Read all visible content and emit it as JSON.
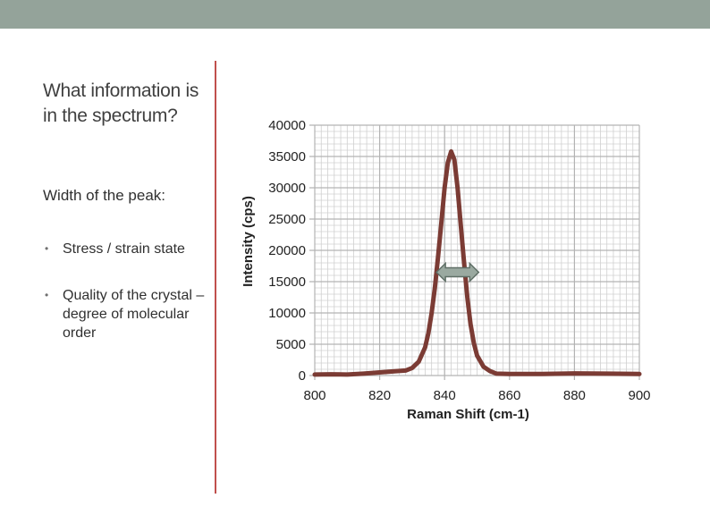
{
  "slide": {
    "title": "What information is in the spectrum?",
    "subheading": "Width of the peak:",
    "bullets": [
      "Stress / strain state",
      "Quality of the crystal – degree of molecular order"
    ]
  },
  "colors": {
    "top_bar": "#94a39a",
    "divider": "#c0504d",
    "series": "#7b3b34",
    "arrow_fill": "#9aa9a0",
    "arrow_stroke": "#5f6f66",
    "grid": "#b3b3b3"
  },
  "chart_data": {
    "type": "line",
    "title": "",
    "xlabel": "Raman Shift (cm-1)",
    "ylabel": "Intensity (cps)",
    "xlim": [
      800,
      900
    ],
    "ylim": [
      0,
      40000
    ],
    "xticks": [
      800,
      820,
      840,
      860,
      880,
      900
    ],
    "yticks": [
      0,
      5000,
      10000,
      15000,
      20000,
      25000,
      30000,
      35000,
      40000
    ],
    "grid": true,
    "legend": "none",
    "series": [
      {
        "x": [
          800,
          805,
          810,
          815,
          820,
          825,
          828,
          830,
          832,
          834,
          835,
          836,
          837,
          838,
          839,
          840,
          841,
          842,
          843,
          844,
          845,
          846,
          847,
          848,
          849,
          850,
          852,
          854,
          856,
          860,
          870,
          880,
          890,
          900
        ],
        "y": [
          150,
          200,
          150,
          300,
          500,
          700,
          800,
          1200,
          2200,
          4500,
          6800,
          10000,
          14000,
          19000,
          24500,
          30000,
          34000,
          35800,
          34500,
          30000,
          24000,
          18000,
          12500,
          8200,
          5200,
          3200,
          1400,
          700,
          300,
          250,
          250,
          350,
          300,
          250
        ]
      }
    ],
    "annotations": [
      {
        "type": "double-arrow",
        "x_start": 837.5,
        "x_end": 850.5,
        "y": 16500
      }
    ]
  }
}
